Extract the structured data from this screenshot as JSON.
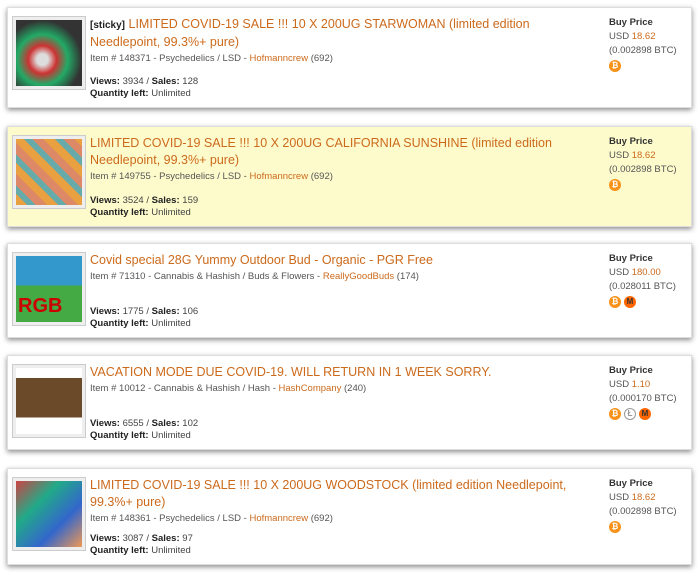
{
  "listings": [
    {
      "sticky": "[sticky]",
      "title": "LIMITED COVID-19 SALE !!! 10 X 200UG STARWOMAN (limited edition Needlepoint, 99.3%+ pure)",
      "item": "Item # 148371 - Psychedelics / LSD - ",
      "vendor": "Hofmanncrew",
      "rating": " (692)",
      "views_label": "Views:",
      "views": " 3934 / ",
      "sales_label": "Sales:",
      "sales": " 128",
      "qty_label": "Quantity left:",
      "qty": " Unlimited",
      "price_label": "Buy Price",
      "usd": "USD ",
      "usd_value": "18.62",
      "btc": "(0.002898 BTC)",
      "coins": [
        "bitcoin"
      ]
    },
    {
      "title": "LIMITED COVID-19 SALE !!! 10 X 200UG CALIFORNIA SUNSHINE (limited edition Needlepoint, 99.3%+ pure)",
      "item": "Item # 149755 - Psychedelics / LSD - ",
      "vendor": "Hofmanncrew",
      "rating": " (692)",
      "views_label": "Views:",
      "views": " 3524 / ",
      "sales_label": "Sales:",
      "sales": " 159",
      "qty_label": "Quantity left:",
      "qty": " Unlimited",
      "price_label": "Buy Price",
      "usd": "USD ",
      "usd_value": "18.62",
      "btc": "(0.002898 BTC)",
      "coins": [
        "bitcoin"
      ],
      "highlighted": true
    },
    {
      "title": "Covid special 28G Yummy Outdoor Bud - Organic - PGR Free",
      "item": "Item # 71310 - Cannabis & Hashish / Buds & Flowers - ",
      "vendor": "ReallyGoodBuds",
      "rating": " (174)",
      "views_label": "Views:",
      "views": " 1775 / ",
      "sales_label": "Sales:",
      "sales": " 106",
      "qty_label": "Quantity left:",
      "qty": " Unlimited",
      "price_label": "Buy Price",
      "usd": "USD ",
      "usd_value": "180.00",
      "btc": "(0.028011 BTC)",
      "coins": [
        "bitcoin",
        "monero"
      ],
      "image_text": "RGB"
    },
    {
      "title": "VACATION MODE DUE COVID-19. WILL RETURN IN 1 WEEK SORRY.",
      "item": "Item # 10012 - Cannabis & Hashish / Hash - ",
      "vendor": "HashCompany",
      "rating": " (240)",
      "views_label": "Views:",
      "views": " 6555 / ",
      "sales_label": "Sales:",
      "sales": " 102",
      "qty_label": "Quantity left:",
      "qty": " Unlimited",
      "price_label": "Buy Price",
      "usd": "USD ",
      "usd_value": "1.10",
      "btc": "(0.000170 BTC)",
      "coins": [
        "bitcoin",
        "litecoin",
        "monero"
      ]
    },
    {
      "title": "LIMITED COVID-19 SALE !!! 10 X 200UG WOODSTOCK (limited edition Needlepoint, 99.3%+ pure)",
      "item": "Item # 148361 - Psychedelics / LSD - ",
      "vendor": "Hofmanncrew",
      "rating": " (692)",
      "views_label": "Views:",
      "views": " 3087 / ",
      "sales_label": "Sales:",
      "sales": " 97",
      "qty_label": "Quantity left:",
      "qty": " Unlimited",
      "price_label": "Buy Price",
      "usd": "USD ",
      "usd_value": "18.62",
      "btc": "(0.002898 BTC)",
      "coins": [
        "bitcoin"
      ]
    }
  ]
}
